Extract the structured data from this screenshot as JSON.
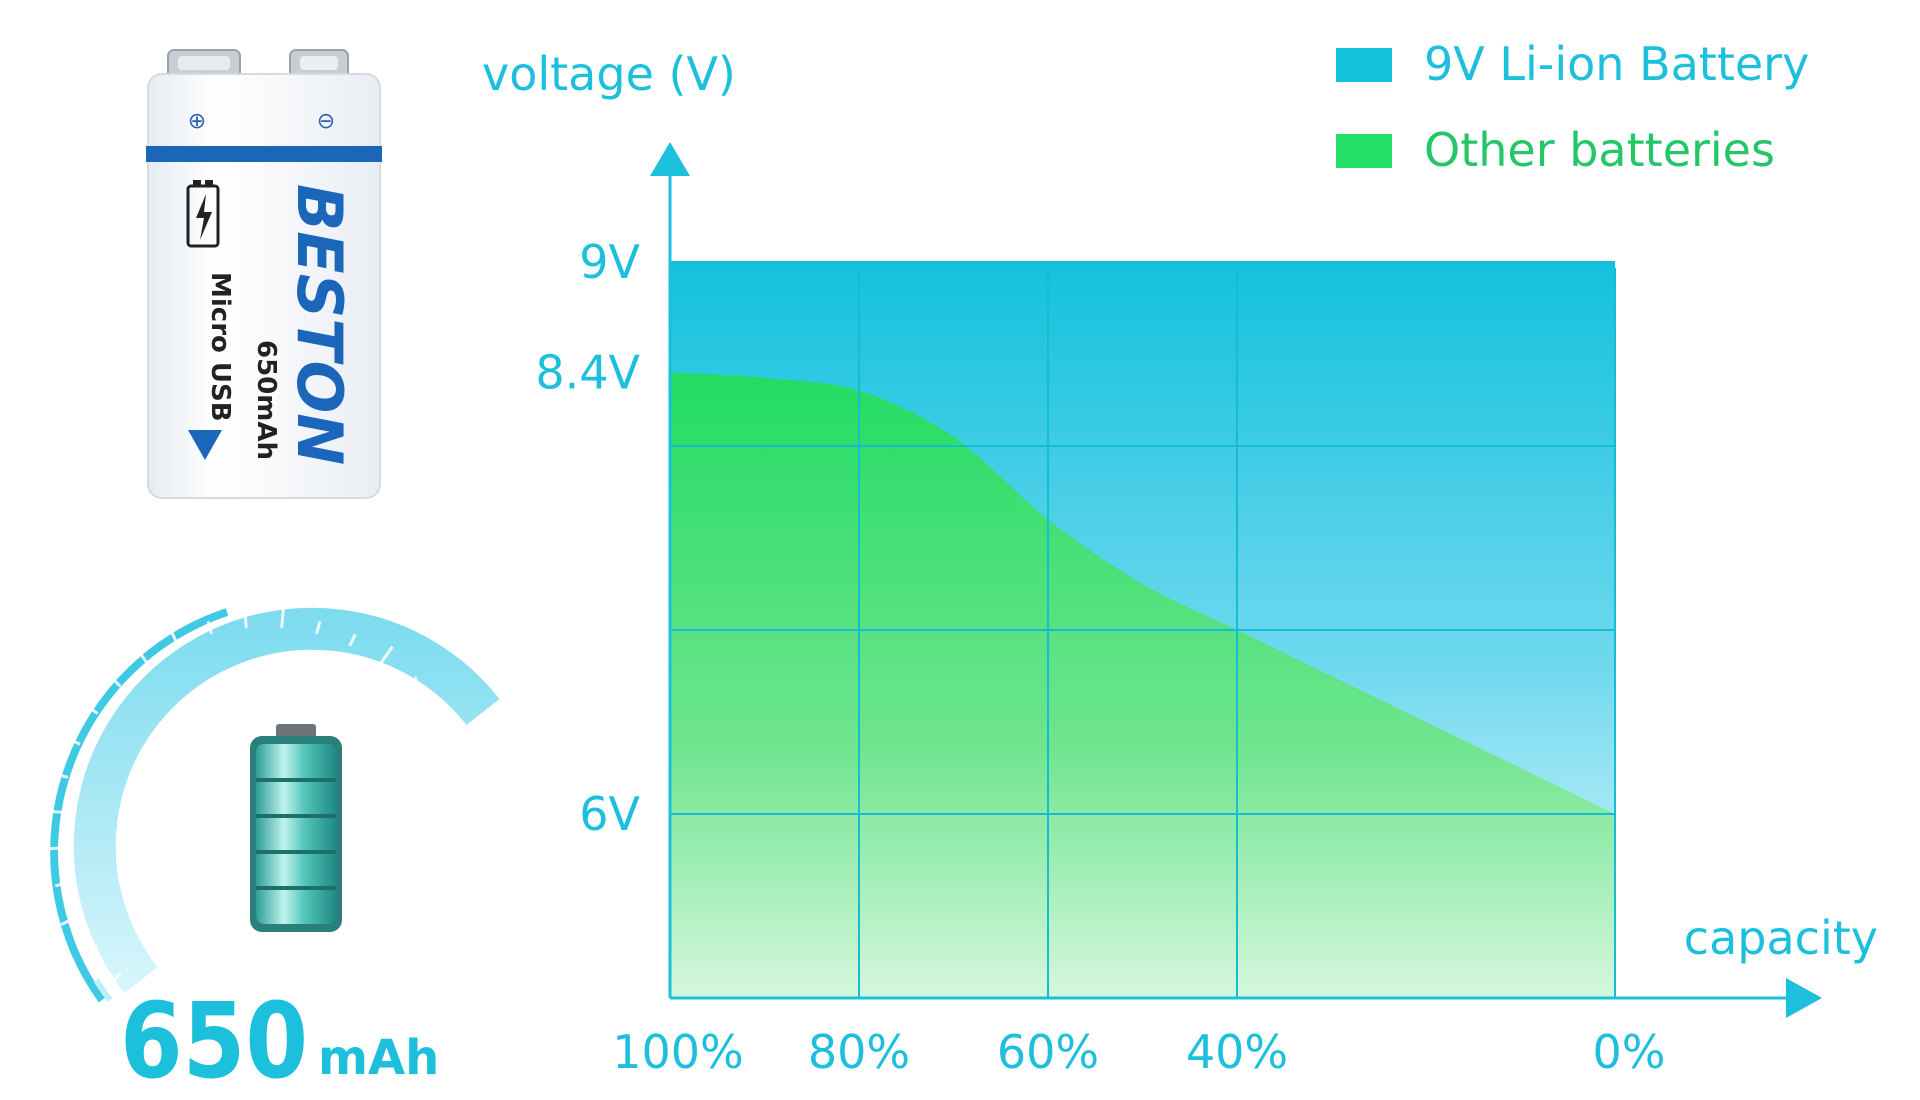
{
  "battery": {
    "brand": "BESTON",
    "capacity_label": "650mAh",
    "port_label": "Micro USB",
    "plus_symbol": "⊕",
    "minus_symbol": "⊖"
  },
  "gauge": {
    "big_number": "650",
    "unit": "mAh"
  },
  "chart_data": {
    "type": "area",
    "ylabel": "voltage (V)",
    "xlabel": "capacity",
    "x": [
      100,
      80,
      60,
      40,
      0
    ],
    "x_tick_labels": [
      "100%",
      "80%",
      "60%",
      "40%",
      "0%"
    ],
    "x_reversed": true,
    "y_tick_values": [
      9,
      8.4,
      6
    ],
    "y_tick_labels": [
      "9V",
      "8.4V",
      "6V"
    ],
    "legend_position": "top-right",
    "series": [
      {
        "name": "9V Li-ion Battery",
        "color": "#14c1dd",
        "x": [
          100,
          0
        ],
        "values": [
          9,
          9
        ]
      },
      {
        "name": "Other batteries",
        "color": "#24de67",
        "x": [
          100,
          90,
          80,
          70,
          60,
          50,
          40,
          30,
          20,
          10,
          0
        ],
        "values": [
          8.4,
          8.37,
          8.3,
          8.05,
          7.6,
          7.25,
          7.0,
          6.75,
          6.5,
          6.25,
          6.0
        ]
      }
    ]
  }
}
